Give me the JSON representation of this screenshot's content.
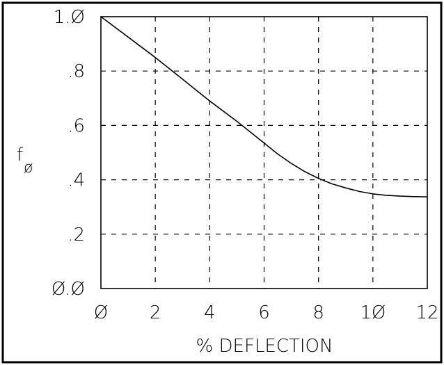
{
  "chart_data": {
    "type": "line",
    "title": "",
    "xlabel": "% DEFLECTION",
    "ylabel": "f",
    "ylabel_subscript": "ø",
    "xlim": [
      0,
      12
    ],
    "ylim": [
      0,
      1
    ],
    "grid": true,
    "grid_style": "dashed",
    "x_ticks": [
      0,
      2,
      4,
      6,
      8,
      10,
      12
    ],
    "x_tick_labels": [
      "Ø",
      "2",
      "4",
      "6",
      "8",
      "1Ø",
      "12"
    ],
    "y_ticks": [
      0,
      0.2,
      0.4,
      0.6,
      0.8,
      1.0
    ],
    "y_tick_labels": [
      "Ø.Ø",
      ".2",
      ".4",
      ".6",
      ".8",
      "1.Ø"
    ],
    "series": [
      {
        "x": [
          0,
          1,
          2,
          3,
          4,
          5,
          6,
          6.5,
          7,
          7.5,
          8,
          8.5,
          9,
          9.5,
          10,
          10.5,
          11,
          11.5,
          12
        ],
        "y": [
          1.0,
          0.925,
          0.85,
          0.77,
          0.69,
          0.615,
          0.535,
          0.495,
          0.46,
          0.43,
          0.405,
          0.385,
          0.37,
          0.357,
          0.348,
          0.343,
          0.34,
          0.338,
          0.337
        ]
      }
    ],
    "colors": {
      "line": "#000000",
      "grid": "#000000",
      "frame": "#000000",
      "background": "#ffffff"
    }
  }
}
